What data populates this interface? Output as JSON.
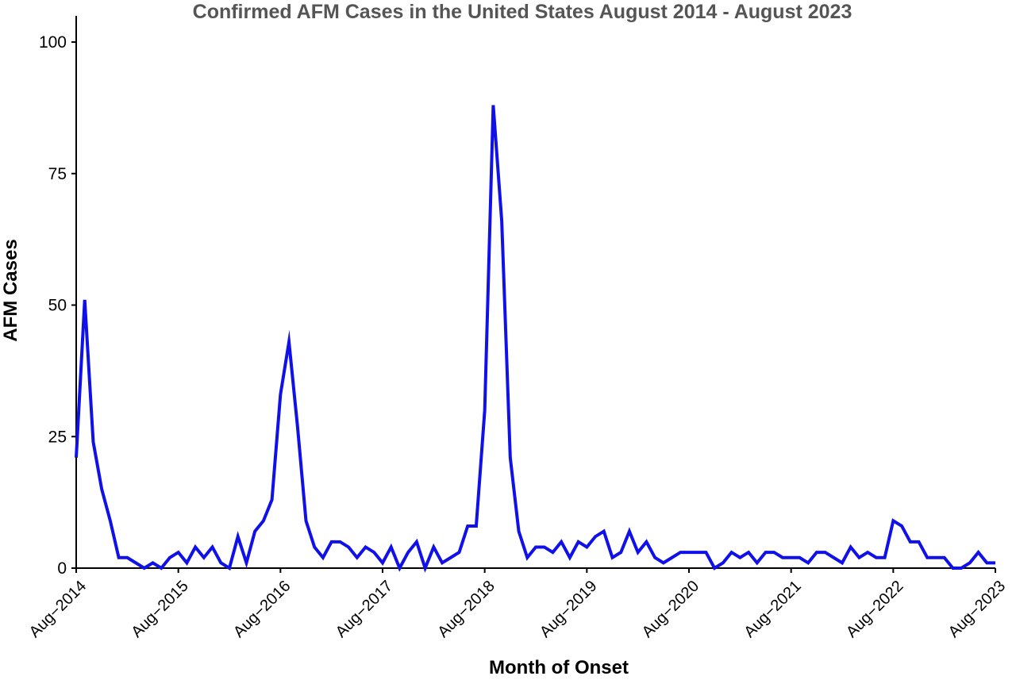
{
  "chart_data": {
    "type": "line",
    "title": "Confirmed AFM Cases in the United States August 2014 - August 2023",
    "xlabel": "Month of Onset",
    "ylabel": "AFM Cases",
    "ylim": [
      0,
      105
    ],
    "yticks": [
      0,
      25,
      50,
      75,
      100
    ],
    "xticks": [
      "Aug−2014",
      "Aug−2015",
      "Aug−2016",
      "Aug−2017",
      "Aug−2018",
      "Aug−2019",
      "Aug−2020",
      "Aug−2021",
      "Aug−2022",
      "Aug−2023"
    ],
    "x_start": "2014-08",
    "x_end": "2023-08",
    "grid": false,
    "legend": "none",
    "series": [
      {
        "color": "#1010e8",
        "values": [
          21,
          51,
          24,
          15,
          9,
          2,
          2,
          1,
          0,
          1,
          0,
          2,
          3,
          1,
          4,
          2,
          4,
          1,
          0,
          6,
          1,
          7,
          9,
          13,
          33,
          43,
          27,
          9,
          4,
          2,
          5,
          5,
          4,
          2,
          4,
          3,
          1,
          4,
          0,
          3,
          5,
          0,
          4,
          1,
          2,
          3,
          8,
          8,
          30,
          88,
          66,
          21,
          7,
          2,
          4,
          4,
          3,
          5,
          2,
          5,
          4,
          6,
          7,
          2,
          3,
          7,
          3,
          5,
          2,
          1,
          2,
          3,
          3,
          3,
          3,
          0,
          1,
          3,
          2,
          3,
          1,
          3,
          3,
          2,
          2,
          2,
          1,
          3,
          3,
          2,
          1,
          4,
          2,
          3,
          2,
          2,
          9,
          8,
          5,
          5,
          2,
          2,
          2,
          0,
          0,
          1,
          3,
          1,
          1
        ]
      }
    ]
  }
}
